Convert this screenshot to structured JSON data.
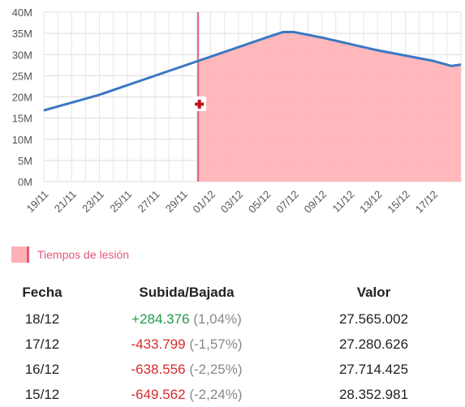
{
  "chart_data": {
    "type": "line",
    "y_ticks": [
      "0M",
      "5M",
      "10M",
      "15M",
      "20M",
      "25M",
      "30M",
      "35M",
      "40M"
    ],
    "ylim": [
      0,
      40
    ],
    "x_ticks": [
      "19/11",
      "21/11",
      "23/11",
      "25/11",
      "27/11",
      "29/11",
      "01/12",
      "03/12",
      "05/12",
      "07/12",
      "09/12",
      "11/12",
      "13/12",
      "15/12",
      "17/12"
    ],
    "series": [
      {
        "values": [
          {
            "x": 0,
            "y": 16.8
          },
          {
            "x": 4,
            "y": 20.5
          },
          {
            "x": 8,
            "y": 25.0
          },
          {
            "x": 12,
            "y": 29.5
          },
          {
            "x": 16,
            "y": 34.0
          },
          {
            "x": 17.2,
            "y": 35.3
          },
          {
            "x": 18.0,
            "y": 35.3
          },
          {
            "x": 20,
            "y": 34.0
          },
          {
            "x": 24,
            "y": 31.0
          },
          {
            "x": 28,
            "y": 28.5
          },
          {
            "x": 29.3,
            "y": 27.3
          },
          {
            "x": 30,
            "y": 27.6
          }
        ],
        "color": "#3a78c3"
      }
    ],
    "injury_start_x": 11.1,
    "injury_color": "#ffb0b5",
    "injury_line_color": "#e05a78",
    "grid": true
  },
  "legend": {
    "injury_label": "Tiempos de lesión"
  },
  "table": {
    "headers": {
      "date": "Fecha",
      "change": "Subida/Bajada",
      "value": "Valor"
    },
    "rows": [
      {
        "date": "18/12",
        "change": "+284.376",
        "pct": "(1,04%)",
        "trend": "up",
        "value": "27.565.002"
      },
      {
        "date": "17/12",
        "change": "-433.799",
        "pct": "(-1,57%)",
        "trend": "down",
        "value": "27.280.626"
      },
      {
        "date": "16/12",
        "change": "-638.556",
        "pct": "(-2,25%)",
        "trend": "down",
        "value": "27.714.425"
      },
      {
        "date": "15/12",
        "change": "-649.562",
        "pct": "(-2,24%)",
        "trend": "down",
        "value": "28.352.981"
      }
    ]
  }
}
